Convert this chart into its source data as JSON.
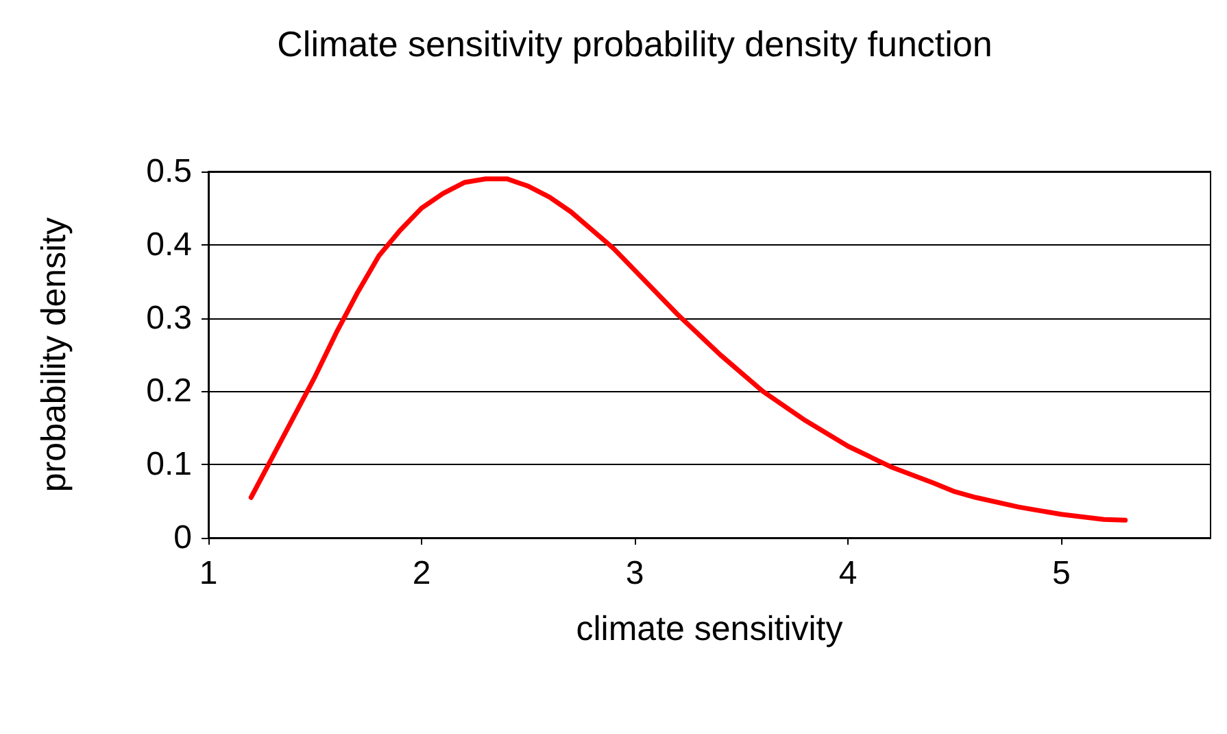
{
  "chart_data": {
    "type": "line",
    "title": "Climate sensitivity probability density function",
    "xlabel": "climate sensitivity",
    "ylabel": "probability density",
    "x": [
      1.2,
      1.3,
      1.4,
      1.5,
      1.6,
      1.7,
      1.8,
      1.9,
      2.0,
      2.1,
      2.2,
      2.3,
      2.4,
      2.5,
      2.6,
      2.7,
      2.8,
      2.9,
      3.0,
      3.2,
      3.4,
      3.6,
      3.8,
      4.0,
      4.2,
      4.4,
      4.5,
      4.6,
      4.8,
      5.0,
      5.2,
      5.3
    ],
    "series": [
      {
        "color": "#ff0000",
        "values": [
          0.055,
          0.11,
          0.165,
          0.22,
          0.28,
          0.335,
          0.385,
          0.42,
          0.45,
          0.47,
          0.485,
          0.49,
          0.49,
          0.48,
          0.465,
          0.445,
          0.42,
          0.395,
          0.365,
          0.305,
          0.25,
          0.2,
          0.16,
          0.125,
          0.097,
          0.075,
          0.063,
          0.055,
          0.042,
          0.032,
          0.025,
          0.024
        ]
      }
    ],
    "xlim": [
      1,
      5.7
    ],
    "xticks": [
      1,
      2,
      3,
      4,
      5
    ],
    "ylim": [
      0,
      0.5
    ],
    "yticks": [
      0,
      0.1,
      0.2,
      0.3,
      0.4,
      0.5
    ],
    "grid": "y",
    "marker": "none",
    "line_style": "solid"
  }
}
